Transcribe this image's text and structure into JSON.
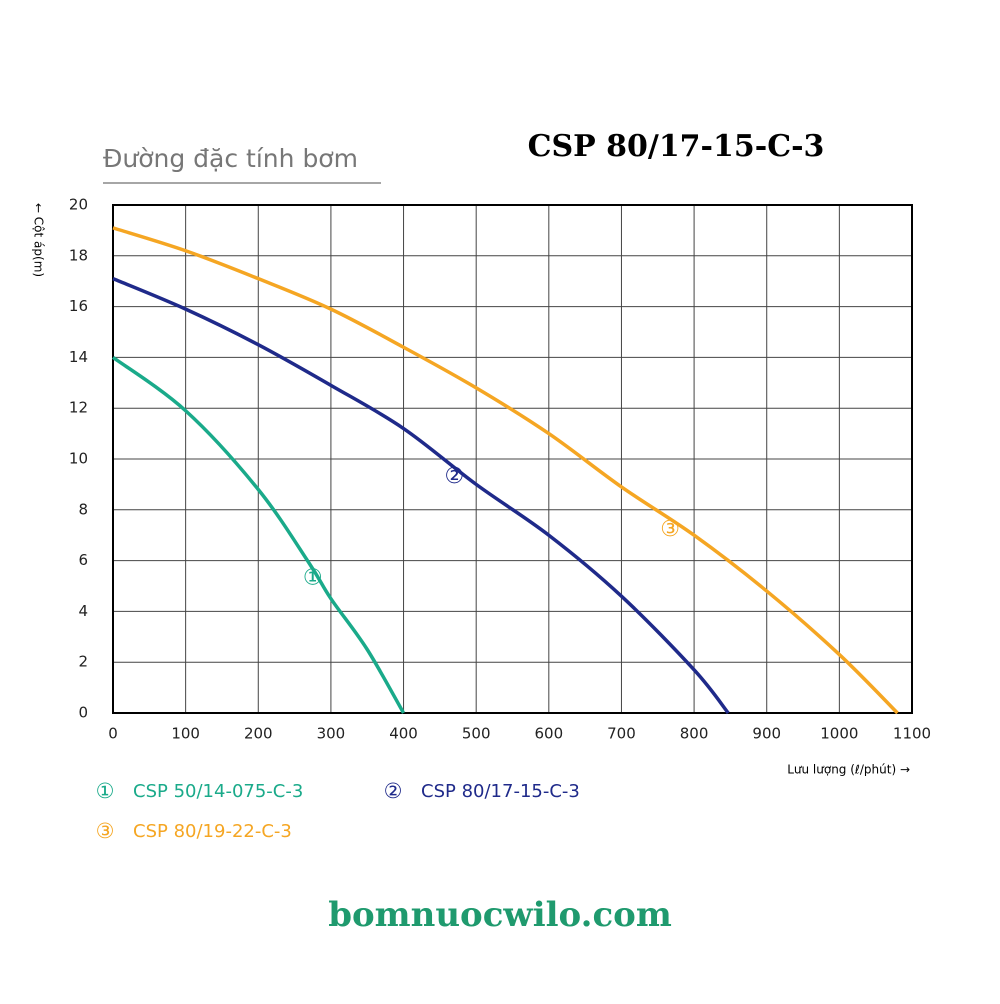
{
  "chart_data": {
    "type": "line",
    "subtitle": "Đường đặc tính bơm",
    "title": "CSP 80/17-15-C-3",
    "y_label": "← Cột áp(m)",
    "x_label": "Lưu lượng (ℓ/phút) →",
    "footer": "bomnuocwilo.com",
    "xlim": [
      0,
      1100
    ],
    "xticks": [
      0,
      100,
      200,
      300,
      400,
      500,
      600,
      700,
      800,
      900,
      1000,
      1100
    ],
    "ylim": [
      0,
      20
    ],
    "yticks": [
      0,
      2,
      4,
      6,
      8,
      10,
      12,
      14,
      16,
      18,
      20
    ],
    "grid": true,
    "series": [
      {
        "name": "CSP 50/14-075-C-3",
        "marker": "①",
        "color": "#1aaa8a",
        "x": [
          0,
          100,
          200,
          270,
          300,
          350,
          400
        ],
        "values": [
          14,
          11.9,
          8.8,
          5.9,
          4.5,
          2.5,
          0
        ],
        "annotation": {
          "x": 275,
          "y": 5.3
        }
      },
      {
        "name": "CSP 80/17-15-C-3",
        "marker": "②",
        "color": "#1f2a8a",
        "x": [
          0,
          100,
          200,
          300,
          400,
          500,
          600,
          700,
          800,
          847
        ],
        "values": [
          17.1,
          15.9,
          14.5,
          12.9,
          11.2,
          9.0,
          7.0,
          4.6,
          1.7,
          0
        ],
        "annotation": {
          "x": 470,
          "y": 9.3
        }
      },
      {
        "name": "CSP 80/19-22-C-3",
        "marker": "③",
        "color": "#f5a623",
        "x": [
          0,
          100,
          200,
          300,
          400,
          500,
          600,
          700,
          800,
          900,
          1000,
          1080
        ],
        "values": [
          19.1,
          18.2,
          17.1,
          15.9,
          14.4,
          12.8,
          11.0,
          8.9,
          7.0,
          4.8,
          2.3,
          0
        ],
        "annotation": {
          "x": 767,
          "y": 7.2
        }
      }
    ]
  }
}
